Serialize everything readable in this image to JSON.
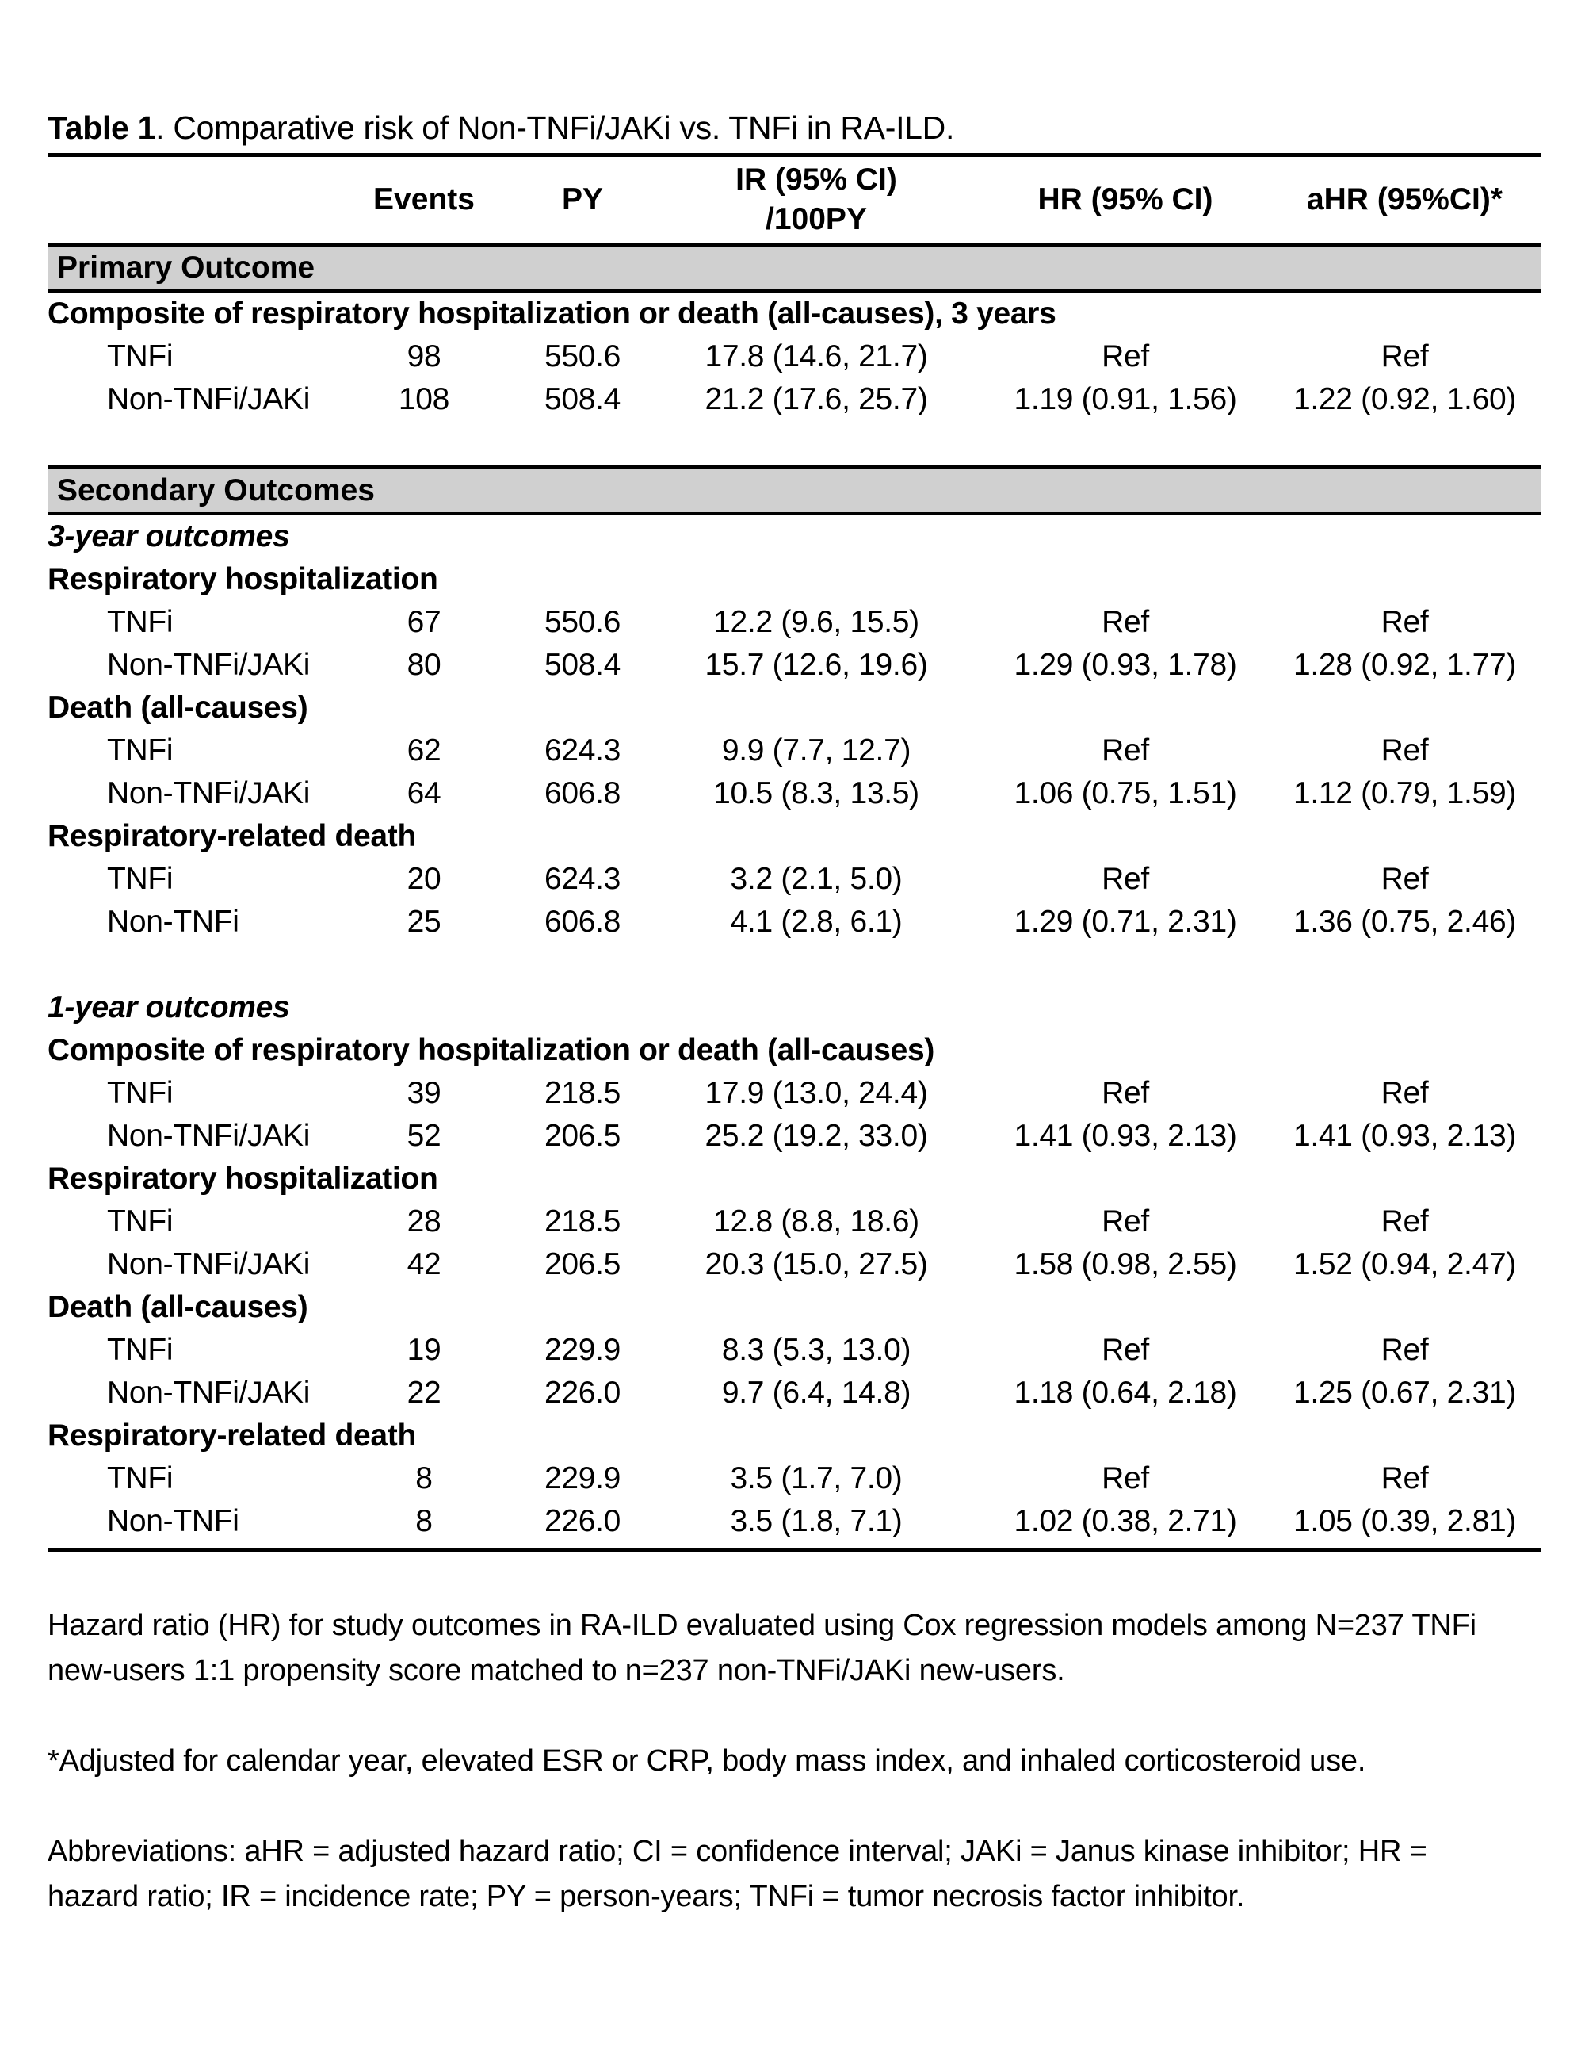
{
  "page": {
    "title_bold": "Table 1",
    "title_rest": ". Comparative risk of Non-TNFi/JAKi vs. TNFi in RA-ILD."
  },
  "columns": {
    "events": "Events",
    "py": "PY",
    "ir_line1": "IR (95% CI)",
    "ir_line2": "/100PY",
    "hr": "HR (95% CI)",
    "ahr": "aHR (95%CI)*"
  },
  "sections": [
    {
      "header": "Primary Outcome",
      "groups": [
        {
          "label": "Composite of respiratory hospitalization or death (all-causes), 3 years",
          "rows": [
            {
              "label": "TNFi",
              "events": "98",
              "py": "550.6",
              "ir": "17.8 (14.6, 21.7)",
              "hr": "Ref",
              "ahr": "Ref"
            },
            {
              "label": "Non-TNFi/JAKi",
              "events": "108",
              "py": "508.4",
              "ir": "21.2 (17.6, 25.7)",
              "hr": "1.19 (0.91, 1.56)",
              "ahr": "1.22 (0.92, 1.60)"
            }
          ]
        }
      ]
    },
    {
      "header": "Secondary Outcomes",
      "groups": [
        {
          "label": "3-year outcomes",
          "rows": []
        },
        {
          "label": "Respiratory hospitalization",
          "rows": [
            {
              "label": "TNFi",
              "events": "67",
              "py": "550.6",
              "ir": "12.2 (9.6, 15.5)",
              "hr": "Ref",
              "ahr": "Ref"
            },
            {
              "label": "Non-TNFi/JAKi",
              "events": "80",
              "py": "508.4",
              "ir": "15.7 (12.6, 19.6)",
              "hr": "1.29 (0.93, 1.78)",
              "ahr": "1.28 (0.92, 1.77)"
            }
          ]
        },
        {
          "label": "Death (all-causes)",
          "rows": [
            {
              "label": "TNFi",
              "events": "62",
              "py": "624.3",
              "ir": "9.9 (7.7, 12.7)",
              "hr": "Ref",
              "ahr": "Ref"
            },
            {
              "label": "Non-TNFi/JAKi",
              "events": "64",
              "py": "606.8",
              "ir": "10.5 (8.3, 13.5)",
              "hr": "1.06 (0.75, 1.51)",
              "ahr": "1.12 (0.79, 1.59)"
            }
          ]
        },
        {
          "label": "Respiratory-related death",
          "rows": [
            {
              "label": "TNFi",
              "events": "20",
              "py": "624.3",
              "ir": "3.2 (2.1, 5.0)",
              "hr": "Ref",
              "ahr": "Ref"
            },
            {
              "label": "Non-TNFi",
              "events": "25",
              "py": "606.8",
              "ir": "4.1 (2.8, 6.1)",
              "hr": "1.29 (0.71, 2.31)",
              "ahr": "1.36 (0.75, 2.46)"
            }
          ]
        },
        {
          "label": "1-year outcomes",
          "rows": []
        },
        {
          "label": "Composite of respiratory hospitalization or death (all-causes)",
          "rows": [
            {
              "label": "TNFi",
              "events": "39",
              "py": "218.5",
              "ir": "17.9 (13.0, 24.4)",
              "hr": "Ref",
              "ahr": "Ref"
            },
            {
              "label": "Non-TNFi/JAKi",
              "events": "52",
              "py": "206.5",
              "ir": "25.2 (19.2, 33.0)",
              "hr": "1.41 (0.93, 2.13)",
              "ahr": "1.41 (0.93, 2.13)"
            }
          ]
        },
        {
          "label": "Respiratory hospitalization",
          "rows": [
            {
              "label": "TNFi",
              "events": "28",
              "py": "218.5",
              "ir": "12.8 (8.8, 18.6)",
              "hr": "Ref",
              "ahr": "Ref"
            },
            {
              "label": "Non-TNFi/JAKi",
              "events": "42",
              "py": "206.5",
              "ir": "20.3 (15.0, 27.5)",
              "hr": "1.58 (0.98, 2.55)",
              "ahr": "1.52 (0.94, 2.47)"
            }
          ]
        },
        {
          "label": "Death (all-causes)",
          "rows": [
            {
              "label": "TNFi",
              "events": "19",
              "py": "229.9",
              "ir": "8.3 (5.3, 13.0)",
              "hr": "Ref",
              "ahr": "Ref"
            },
            {
              "label": "Non-TNFi/JAKi",
              "events": "22",
              "py": "226.0",
              "ir": "9.7 (6.4, 14.8)",
              "hr": "1.18 (0.64, 2.18)",
              "ahr": "1.25 (0.67, 2.31)"
            }
          ]
        },
        {
          "label": "Respiratory-related death",
          "rows": [
            {
              "label": "TNFi",
              "events": "8",
              "py": "229.9",
              "ir": "3.5 (1.7, 7.0)",
              "hr": "Ref",
              "ahr": "Ref"
            },
            {
              "label": "Non-TNFi",
              "events": "8",
              "py": "226.0",
              "ir": "3.5 (1.8, 7.1)",
              "hr": "1.02 (0.38, 2.71)",
              "ahr": "1.05 (0.39, 2.81)"
            }
          ]
        }
      ]
    }
  ],
  "footnotes": [
    "Hazard ratio (HR) for study outcomes in RA-ILD evaluated using Cox regression models among N=237 TNFi new-users 1:1 propensity score matched to n=237 non-TNFi/JAKi new-users.",
    "*Adjusted for calendar year, elevated ESR or CRP, body mass index, and inhaled corticosteroid use.",
    "Abbreviations: aHR = adjusted hazard ratio; CI = confidence interval; JAKi = Janus kinase inhibitor; HR = hazard ratio; IR = incidence rate; PY = person-years; TNFi = tumor necrosis factor inhibitor."
  ],
  "colors": {
    "section_bar_bg": "#d0d0d0",
    "text": "#000000",
    "page_bg": "#ffffff"
  }
}
